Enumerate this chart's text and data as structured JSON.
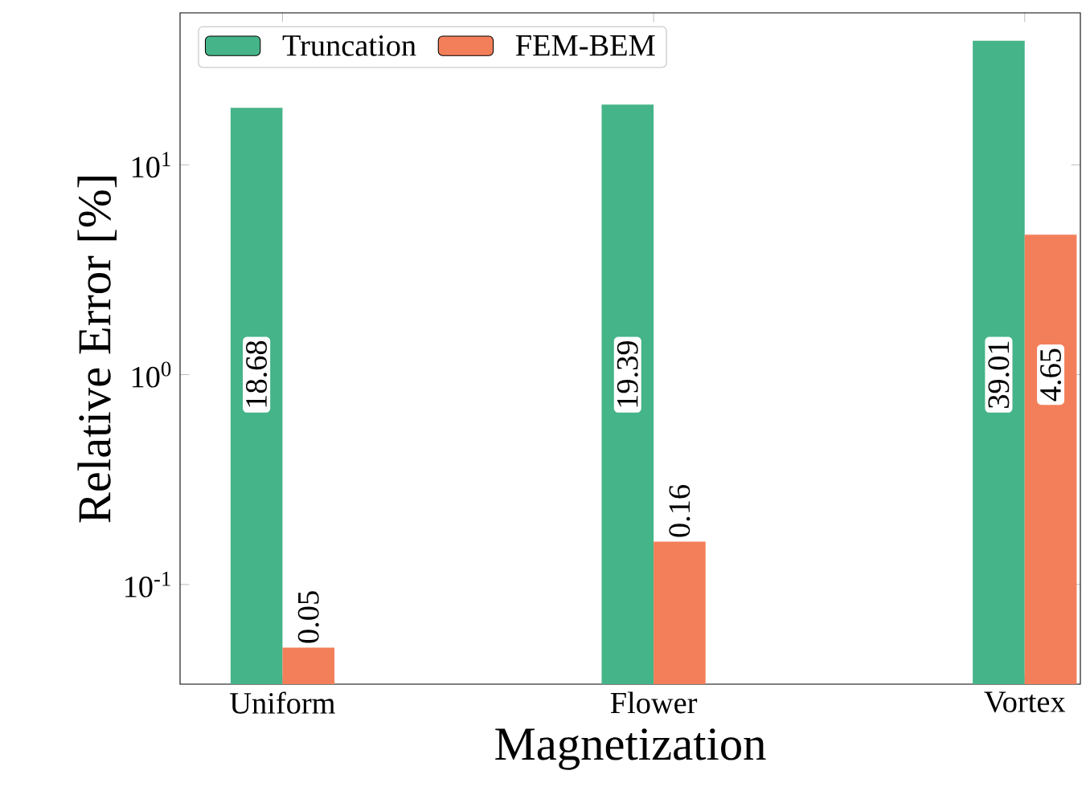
{
  "chart_data": {
    "type": "bar",
    "xlabel": "Magnetization",
    "ylabel": "Relative Error [%]",
    "categories": [
      "Uniform",
      "Flower",
      "Vortex"
    ],
    "series": [
      {
        "name": "Truncation",
        "color": "#45b488",
        "values": [
          18.68,
          19.39,
          39.01
        ]
      },
      {
        "name": "FEM-BEM",
        "color": "#f37f5a",
        "values": [
          0.05,
          0.16,
          4.65
        ]
      }
    ],
    "log": "y",
    "ylim": [
      0.0335,
      53
    ],
    "yticks": [
      {
        "value": 0.1,
        "label": "10$^{-1}$"
      },
      {
        "value": 1,
        "label": "10$^{0}$"
      },
      {
        "value": 10,
        "label": "10$^{1}$"
      }
    ],
    "data_labels": true,
    "legend": "top left",
    "grid": false
  }
}
